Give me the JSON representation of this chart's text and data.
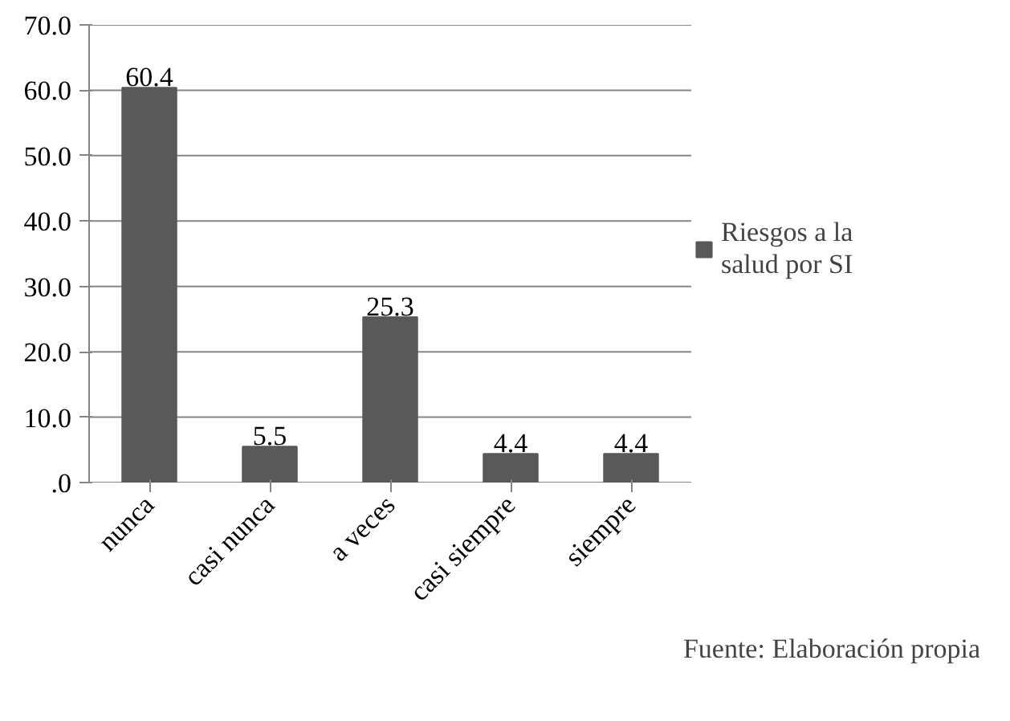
{
  "chart_data": {
    "type": "bar",
    "categories": [
      "nunca",
      "casi nunca",
      "a veces",
      "casi siempre",
      "siempre"
    ],
    "series": [
      {
        "name": "Riesgos a la salud por SI",
        "color": "#595959",
        "values": [
          60.4,
          5.5,
          25.3,
          4.4,
          4.4
        ]
      }
    ],
    "ylim": [
      0,
      70
    ],
    "yticks": [
      {
        "value": 0,
        "label": ".0"
      },
      {
        "value": 10,
        "label": "10.0"
      },
      {
        "value": 20,
        "label": "20.0"
      },
      {
        "value": 30,
        "label": "30.0"
      },
      {
        "value": 40,
        "label": "40.0"
      },
      {
        "value": 50,
        "label": "50.0"
      },
      {
        "value": 60,
        "label": "60.0"
      },
      {
        "value": 70,
        "label": "70.0"
      }
    ],
    "grid": "y",
    "legend": "right",
    "data_labels": true,
    "annotations": [
      "Fuente: Elaboración propia"
    ]
  }
}
